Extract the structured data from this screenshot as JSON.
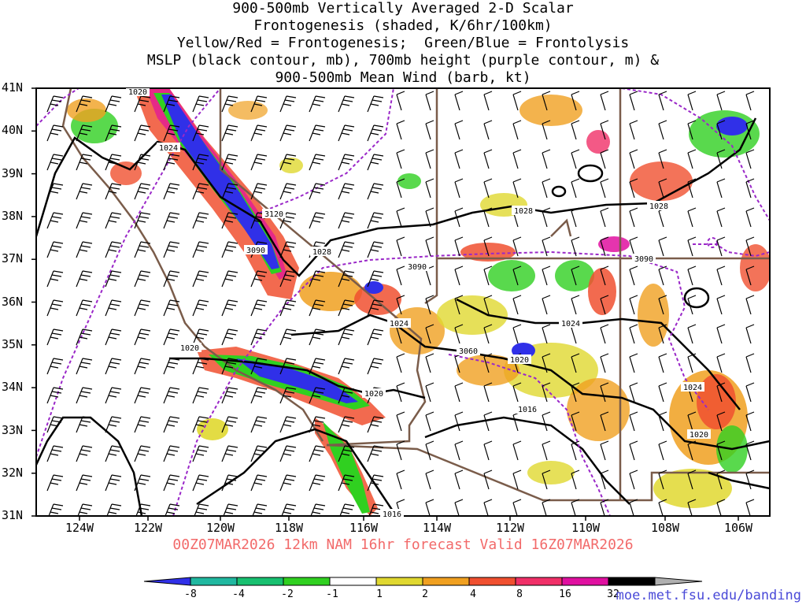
{
  "title": {
    "line1": "900-500mb Vertically Averaged 2-D Scalar",
    "line2": "Frontogenesis (shaded, K/6hr/100km)",
    "line3": "Yellow/Red = Frontogenesis;  Green/Blue = Frontolysis",
    "line4": "MSLP (black contour, mb), 700mb height (purple contour, m) &",
    "line5": "900-500mb Mean Wind (barb, kt)"
  },
  "axes": {
    "latitudes": [
      "41N",
      "40N",
      "39N",
      "38N",
      "37N",
      "36N",
      "35N",
      "34N",
      "33N",
      "32N",
      "31N"
    ],
    "longitudes": [
      "124W",
      "122W",
      "120W",
      "118W",
      "116W",
      "114W",
      "112W",
      "110W",
      "108W",
      "106W"
    ]
  },
  "contour_labels": {
    "mslp": [
      "1024",
      "1028",
      "1028",
      "1028",
      "1024",
      "1024",
      "1020",
      "1020",
      "1020",
      "1020",
      "1016",
      "1016",
      "1024",
      "1020"
    ],
    "height": [
      "3120",
      "3090",
      "3090",
      "3060",
      "3090"
    ]
  },
  "forecast_line": "00Z07MAR2026 12km NAM 16hr forecast Valid 16Z07MAR2026",
  "colorbar": {
    "ticks": [
      "-8",
      "-4",
      "-2",
      "-1",
      "1",
      "2",
      "4",
      "8",
      "16",
      "32"
    ],
    "colors": [
      "#3030e8",
      "#20b8a0",
      "#18c070",
      "#30d020",
      "#ffffff",
      "#e0d830",
      "#f0a020",
      "#f05030",
      "#f03068",
      "#e010a0",
      "#000000",
      "#b0b0b0"
    ]
  },
  "credit": "moe.met.fsu.edu/banding"
}
